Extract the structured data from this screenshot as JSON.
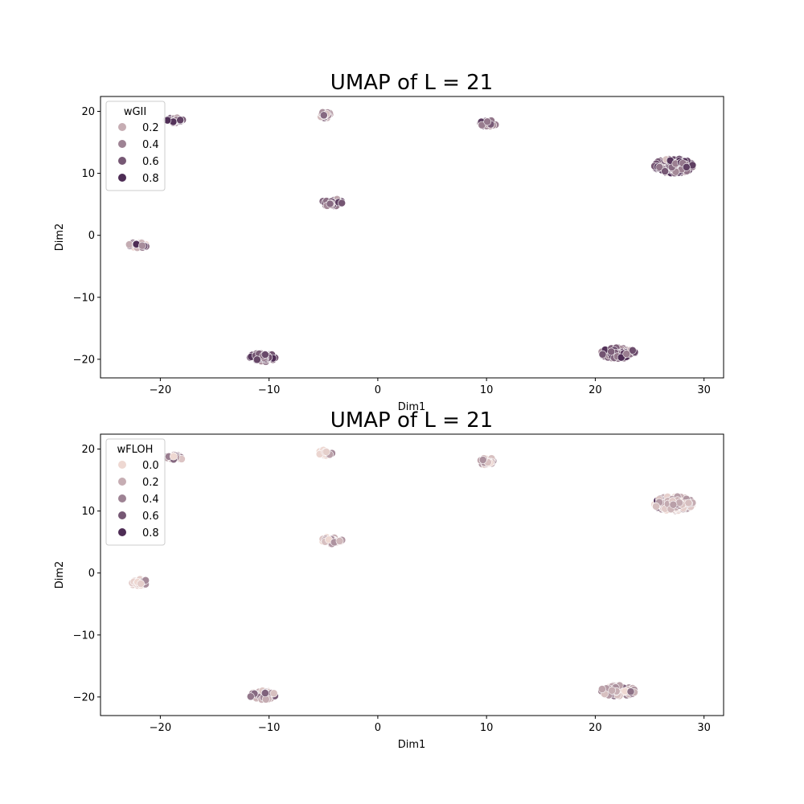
{
  "chart_data": [
    {
      "type": "scatter",
      "title": "UMAP of L = 21",
      "xlabel": "Dim1",
      "ylabel": "Dim2",
      "xlim": [
        -25.5,
        31.8
      ],
      "ylim": [
        -23,
        22.4
      ],
      "xticks": [
        -20,
        -10,
        0,
        10,
        20,
        30
      ],
      "yticks": [
        -20,
        -10,
        0,
        10,
        20
      ],
      "xtick_labels": [
        "−20",
        "−10",
        "0",
        "10",
        "20",
        "30"
      ],
      "ytick_labels": [
        "−20",
        "−10",
        "0",
        "10",
        "20"
      ],
      "legend": {
        "title": "wGII",
        "placement": "top-left",
        "entries": [
          {
            "label": "0.2",
            "value": 0.2
          },
          {
            "label": "0.4",
            "value": 0.4
          },
          {
            "label": "0.6",
            "value": 0.6
          },
          {
            "label": "0.8",
            "value": 0.8
          }
        ]
      },
      "hue_variable": "wGII",
      "color_range": [
        "#eed8d2",
        "#4e2d55"
      ],
      "grid": false,
      "clusters": [
        {
          "center": [
            -18.7,
            18.6
          ],
          "spread": [
            0.75,
            0.45
          ],
          "count": 30,
          "mean_value": 0.6
        },
        {
          "center": [
            -4.9,
            19.4
          ],
          "spread": [
            0.7,
            0.45
          ],
          "count": 22,
          "mean_value": 0.35
        },
        {
          "center": [
            10.1,
            18.0
          ],
          "spread": [
            0.75,
            0.55
          ],
          "count": 28,
          "mean_value": 0.55
        },
        {
          "center": [
            27.2,
            11.2
          ],
          "spread": [
            1.75,
            1.15
          ],
          "count": 210,
          "mean_value": 0.6
        },
        {
          "center": [
            -4.2,
            5.3
          ],
          "spread": [
            0.9,
            0.6
          ],
          "count": 40,
          "mean_value": 0.55
        },
        {
          "center": [
            -22.0,
            -1.5
          ],
          "spread": [
            0.85,
            0.5
          ],
          "count": 30,
          "mean_value": 0.35
        },
        {
          "center": [
            -10.6,
            -19.7
          ],
          "spread": [
            1.15,
            0.7
          ],
          "count": 60,
          "mean_value": 0.65
        },
        {
          "center": [
            22.1,
            -19.0
          ],
          "spread": [
            1.55,
            0.85
          ],
          "count": 110,
          "mean_value": 0.55
        }
      ]
    },
    {
      "type": "scatter",
      "title": "UMAP of L = 21",
      "xlabel": "Dim1",
      "ylabel": "Dim2",
      "xlim": [
        -25.5,
        31.8
      ],
      "ylim": [
        -23,
        22.4
      ],
      "xticks": [
        -20,
        -10,
        0,
        10,
        20,
        30
      ],
      "yticks": [
        -20,
        -10,
        0,
        10,
        20
      ],
      "xtick_labels": [
        "−20",
        "−10",
        "0",
        "10",
        "20",
        "30"
      ],
      "ytick_labels": [
        "−20",
        "−10",
        "0",
        "10",
        "20"
      ],
      "legend": {
        "title": "wFLOH",
        "placement": "top-left",
        "entries": [
          {
            "label": "0.0",
            "value": 0.0
          },
          {
            "label": "0.2",
            "value": 0.2
          },
          {
            "label": "0.4",
            "value": 0.4
          },
          {
            "label": "0.6",
            "value": 0.6
          },
          {
            "label": "0.8",
            "value": 0.8
          }
        ]
      },
      "hue_variable": "wFLOH",
      "color_range": [
        "#eed8d2",
        "#4e2d55"
      ],
      "grid": false,
      "clusters": [
        {
          "center": [
            -18.7,
            18.6
          ],
          "spread": [
            0.75,
            0.45
          ],
          "count": 30,
          "mean_value": 0.3
        },
        {
          "center": [
            -4.9,
            19.4
          ],
          "spread": [
            0.7,
            0.45
          ],
          "count": 22,
          "mean_value": 0.15
        },
        {
          "center": [
            10.1,
            18.0
          ],
          "spread": [
            0.75,
            0.55
          ],
          "count": 28,
          "mean_value": 0.2
        },
        {
          "center": [
            27.2,
            11.2
          ],
          "spread": [
            1.75,
            1.15
          ],
          "count": 210,
          "mean_value": 0.2
        },
        {
          "center": [
            -4.2,
            5.3
          ],
          "spread": [
            0.9,
            0.6
          ],
          "count": 40,
          "mean_value": 0.2
        },
        {
          "center": [
            -22.0,
            -1.5
          ],
          "spread": [
            0.85,
            0.5
          ],
          "count": 30,
          "mean_value": 0.15
        },
        {
          "center": [
            -10.6,
            -19.7
          ],
          "spread": [
            1.15,
            0.7
          ],
          "count": 60,
          "mean_value": 0.4
        },
        {
          "center": [
            22.1,
            -19.0
          ],
          "spread": [
            1.55,
            0.85
          ],
          "count": 110,
          "mean_value": 0.3
        }
      ]
    }
  ]
}
